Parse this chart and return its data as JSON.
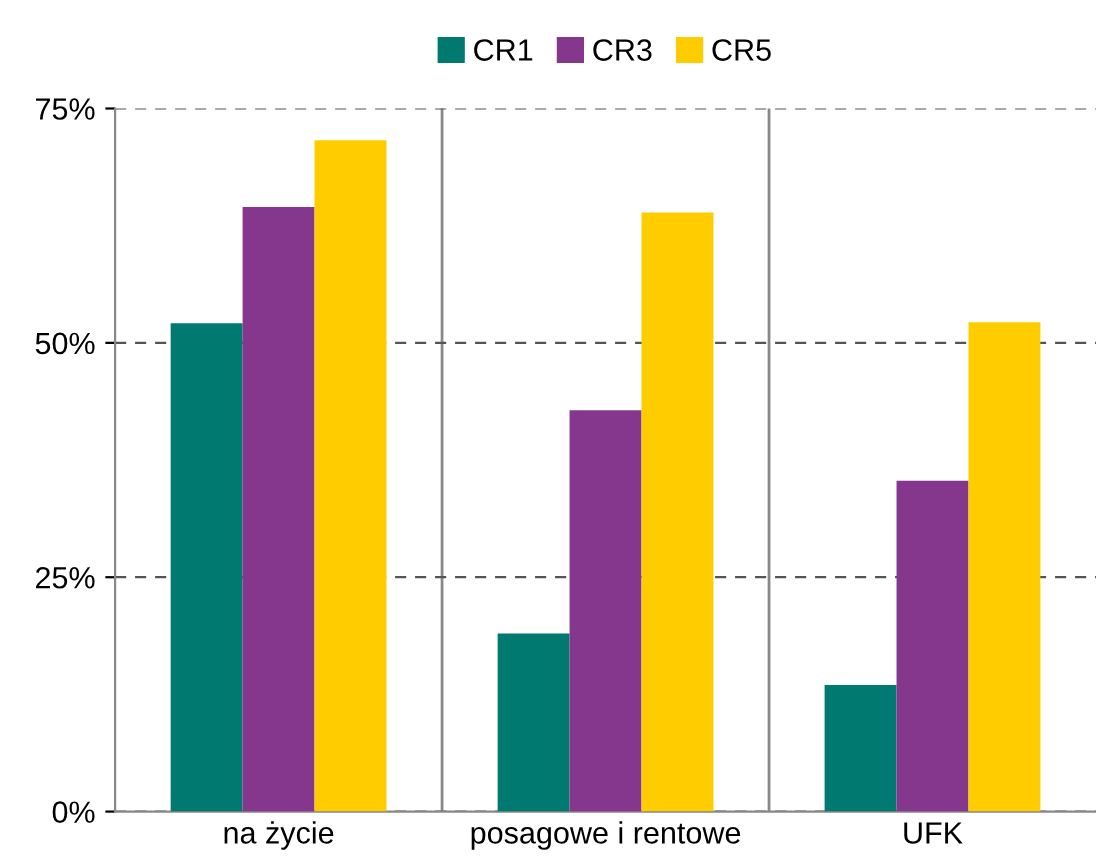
{
  "chart_data": {
    "type": "bar",
    "categories": [
      "na życie",
      "posagowe i rentowe",
      "UFK"
    ],
    "series": [
      {
        "name": "CR1",
        "color": "#007a70",
        "values": [
          52.1,
          19.0,
          13.5
        ]
      },
      {
        "name": "CR3",
        "color": "#84378c",
        "values": [
          64.5,
          42.8,
          35.3
        ]
      },
      {
        "name": "CR5",
        "color": "#ffcc00",
        "values": [
          71.6,
          63.9,
          52.2
        ]
      }
    ],
    "ylim": [
      0,
      75
    ],
    "yticks": [
      {
        "value": 0,
        "label": "0%"
      },
      {
        "value": 25,
        "label": "25%"
      },
      {
        "value": 50,
        "label": "50%"
      },
      {
        "value": 75,
        "label": "75%"
      }
    ],
    "grid": "y",
    "legend": "top"
  }
}
